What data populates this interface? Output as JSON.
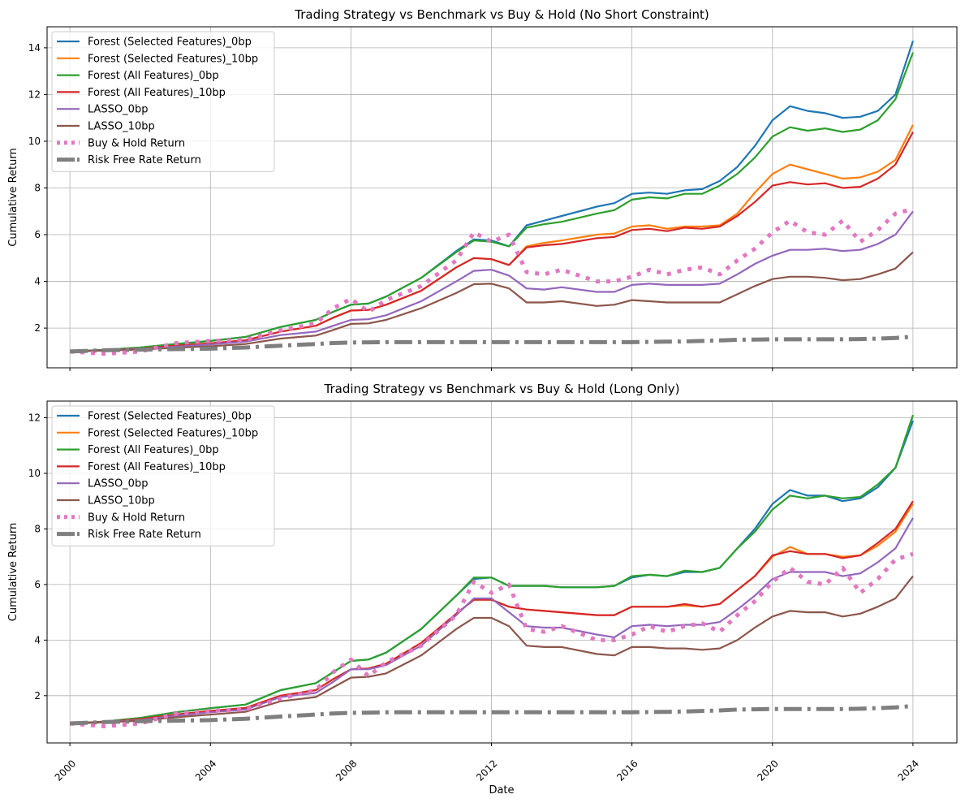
{
  "figure": {
    "xlabel": "Date"
  },
  "colors": {
    "forest_sel_0bp": "#1f77b4",
    "forest_sel_10bp": "#ff7f0e",
    "forest_all_0bp": "#2ca02c",
    "forest_all_10bp": "#d62728",
    "lasso_0bp": "#9467bd",
    "lasso_10bp": "#8c564b",
    "buy_hold": "#e377c2",
    "risk_free": "#7f7f7f"
  },
  "chart_data": [
    {
      "type": "line",
      "title": "Trading Strategy vs Benchmark vs Buy & Hold (No Short Constraint)",
      "xlabel": "",
      "ylabel": "Cumulative Return",
      "xlim": [
        2000,
        2024
      ],
      "ylim": [
        0.3,
        14.9
      ],
      "x_ticks": [
        "2000",
        "2004",
        "2008",
        "2012",
        "2016",
        "2020",
        "2024"
      ],
      "x_tick_values": [
        2000,
        2004,
        2008,
        2012,
        2016,
        2020,
        2024
      ],
      "y_ticks": [
        2,
        4,
        6,
        8,
        10,
        12,
        14
      ],
      "grid": true,
      "legend_position": "upper-left",
      "x": [
        2000.0,
        2001.0,
        2002.0,
        2003.0,
        2004.0,
        2005.0,
        2006.0,
        2007.0,
        2007.5,
        2008.0,
        2008.5,
        2009.0,
        2010.0,
        2011.0,
        2011.5,
        2012.0,
        2012.5,
        2013.0,
        2013.5,
        2014.0,
        2015.0,
        2015.5,
        2016.0,
        2016.5,
        2017.0,
        2017.5,
        2018.0,
        2018.5,
        2019.0,
        2019.5,
        2020.0,
        2020.5,
        2021.0,
        2021.5,
        2022.0,
        2022.5,
        2023.0,
        2023.5,
        2024.0
      ],
      "series": [
        {
          "name": "Forest (Selected Features)_0bp",
          "color_key": "forest_sel_0bp",
          "style": "solid",
          "width": 2.2,
          "values": [
            1.0,
            1.07,
            1.17,
            1.32,
            1.45,
            1.62,
            2.05,
            2.35,
            2.7,
            3.0,
            3.05,
            3.35,
            4.15,
            5.3,
            5.8,
            5.75,
            5.5,
            6.4,
            6.6,
            6.8,
            7.2,
            7.35,
            7.75,
            7.8,
            7.75,
            7.9,
            7.95,
            8.3,
            8.9,
            9.8,
            10.9,
            11.5,
            11.3,
            11.2,
            11.0,
            11.05,
            11.3,
            12.0,
            14.3
          ]
        },
        {
          "name": "Forest (Selected Features)_10bp",
          "color_key": "forest_sel_10bp",
          "style": "solid",
          "width": 2.2,
          "values": [
            1.0,
            1.05,
            1.12,
            1.25,
            1.35,
            1.48,
            1.85,
            2.1,
            2.45,
            2.75,
            2.78,
            3.0,
            3.6,
            4.6,
            5.0,
            4.95,
            4.7,
            5.5,
            5.65,
            5.75,
            6.0,
            6.05,
            6.35,
            6.4,
            6.25,
            6.35,
            6.35,
            6.4,
            6.9,
            7.8,
            8.6,
            9.0,
            8.8,
            8.6,
            8.4,
            8.45,
            8.7,
            9.2,
            10.7
          ]
        },
        {
          "name": "Forest (All Features)_0bp",
          "color_key": "forest_all_0bp",
          "style": "solid",
          "width": 2.2,
          "values": [
            1.0,
            1.07,
            1.17,
            1.32,
            1.45,
            1.62,
            2.05,
            2.35,
            2.7,
            3.0,
            3.05,
            3.35,
            4.15,
            5.25,
            5.75,
            5.7,
            5.5,
            6.3,
            6.45,
            6.55,
            6.9,
            7.05,
            7.5,
            7.6,
            7.55,
            7.75,
            7.75,
            8.1,
            8.6,
            9.3,
            10.2,
            10.6,
            10.45,
            10.55,
            10.4,
            10.5,
            10.9,
            11.8,
            13.8
          ]
        },
        {
          "name": "Forest (All Features)_10bp",
          "color_key": "forest_all_10bp",
          "style": "solid",
          "width": 2.2,
          "values": [
            1.0,
            1.05,
            1.12,
            1.25,
            1.35,
            1.48,
            1.85,
            2.1,
            2.45,
            2.75,
            2.78,
            3.0,
            3.6,
            4.6,
            5.0,
            4.95,
            4.7,
            5.45,
            5.55,
            5.6,
            5.85,
            5.9,
            6.2,
            6.25,
            6.15,
            6.3,
            6.25,
            6.35,
            6.8,
            7.4,
            8.1,
            8.25,
            8.15,
            8.2,
            8.0,
            8.05,
            8.4,
            9.0,
            10.4
          ]
        },
        {
          "name": "LASSO_0bp",
          "color_key": "lasso_0bp",
          "style": "solid",
          "width": 2.2,
          "values": [
            1.0,
            1.05,
            1.1,
            1.2,
            1.3,
            1.42,
            1.7,
            1.85,
            2.1,
            2.35,
            2.38,
            2.55,
            3.15,
            4.0,
            4.45,
            4.5,
            4.25,
            3.7,
            3.65,
            3.75,
            3.55,
            3.55,
            3.85,
            3.9,
            3.85,
            3.85,
            3.85,
            3.9,
            4.3,
            4.75,
            5.1,
            5.35,
            5.35,
            5.4,
            5.3,
            5.35,
            5.6,
            6.0,
            7.0
          ]
        },
        {
          "name": "LASSO_10bp",
          "color_key": "lasso_10bp",
          "style": "solid",
          "width": 2.2,
          "values": [
            1.0,
            1.04,
            1.08,
            1.16,
            1.22,
            1.32,
            1.55,
            1.68,
            1.92,
            2.18,
            2.2,
            2.35,
            2.85,
            3.5,
            3.88,
            3.9,
            3.7,
            3.1,
            3.1,
            3.15,
            2.95,
            3.0,
            3.2,
            3.15,
            3.1,
            3.1,
            3.1,
            3.1,
            3.45,
            3.8,
            4.1,
            4.2,
            4.2,
            4.15,
            4.05,
            4.1,
            4.3,
            4.55,
            5.25
          ]
        },
        {
          "name": "Buy & Hold Return",
          "color_key": "buy_hold",
          "style": "dotted",
          "width": 5,
          "values": [
            1.0,
            0.9,
            1.0,
            1.35,
            1.45,
            1.5,
            1.9,
            2.2,
            2.85,
            3.25,
            2.7,
            3.2,
            3.8,
            4.9,
            6.1,
            5.7,
            6.0,
            4.4,
            4.3,
            4.5,
            4.0,
            4.0,
            4.2,
            4.5,
            4.3,
            4.5,
            4.6,
            4.3,
            4.9,
            5.4,
            6.1,
            6.6,
            6.1,
            6.0,
            6.6,
            5.7,
            6.2,
            6.9,
            7.1
          ]
        },
        {
          "name": "Risk Free Rate Return",
          "color_key": "risk_free",
          "style": "dashdot",
          "width": 5,
          "values": [
            1.0,
            1.05,
            1.08,
            1.1,
            1.12,
            1.17,
            1.25,
            1.32,
            1.36,
            1.38,
            1.39,
            1.4,
            1.4,
            1.4,
            1.4,
            1.4,
            1.4,
            1.4,
            1.4,
            1.4,
            1.4,
            1.4,
            1.4,
            1.41,
            1.42,
            1.43,
            1.45,
            1.47,
            1.5,
            1.51,
            1.52,
            1.52,
            1.52,
            1.52,
            1.52,
            1.53,
            1.55,
            1.58,
            1.63
          ]
        }
      ]
    },
    {
      "type": "line",
      "title": "Trading Strategy vs Benchmark vs Buy & Hold (Long Only)",
      "xlabel": "Date",
      "ylabel": "Cumulative Return",
      "xlim": [
        2000,
        2024
      ],
      "ylim": [
        0.3,
        12.6
      ],
      "x_ticks": [
        "2000",
        "2004",
        "2008",
        "2012",
        "2016",
        "2020",
        "2024"
      ],
      "x_tick_values": [
        2000,
        2004,
        2008,
        2012,
        2016,
        2020,
        2024
      ],
      "y_ticks": [
        2,
        4,
        6,
        8,
        10,
        12
      ],
      "grid": true,
      "legend_position": "upper-left",
      "x": [
        2000.0,
        2001.0,
        2002.0,
        2003.0,
        2004.0,
        2005.0,
        2006.0,
        2007.0,
        2007.5,
        2008.0,
        2008.5,
        2009.0,
        2010.0,
        2011.0,
        2011.5,
        2012.0,
        2012.5,
        2013.0,
        2013.5,
        2014.0,
        2015.0,
        2015.5,
        2016.0,
        2016.5,
        2017.0,
        2017.5,
        2018.0,
        2018.5,
        2019.0,
        2019.5,
        2020.0,
        2020.5,
        2021.0,
        2021.5,
        2022.0,
        2022.5,
        2023.0,
        2023.5,
        2024.0
      ],
      "series": [
        {
          "name": "Forest (Selected Features)_0bp",
          "color_key": "forest_sel_0bp",
          "style": "solid",
          "width": 2.2,
          "values": [
            1.0,
            1.07,
            1.2,
            1.4,
            1.55,
            1.68,
            2.2,
            2.45,
            2.85,
            3.25,
            3.3,
            3.55,
            4.4,
            5.6,
            6.2,
            6.25,
            5.95,
            5.95,
            5.95,
            5.9,
            5.9,
            5.95,
            6.25,
            6.35,
            6.3,
            6.45,
            6.45,
            6.6,
            7.3,
            8.0,
            8.9,
            9.4,
            9.2,
            9.2,
            9.0,
            9.1,
            9.5,
            10.2,
            11.9
          ]
        },
        {
          "name": "Forest (Selected Features)_10bp",
          "color_key": "forest_sel_10bp",
          "style": "solid",
          "width": 2.2,
          "values": [
            1.0,
            1.06,
            1.16,
            1.32,
            1.45,
            1.56,
            2.0,
            2.2,
            2.6,
            2.95,
            2.98,
            3.15,
            3.9,
            4.95,
            5.45,
            5.45,
            5.2,
            5.1,
            5.05,
            5.0,
            4.9,
            4.9,
            5.2,
            5.2,
            5.2,
            5.25,
            5.2,
            5.3,
            5.8,
            6.3,
            7.0,
            7.35,
            7.1,
            7.1,
            7.0,
            7.05,
            7.4,
            7.9,
            8.9
          ]
        },
        {
          "name": "Forest (All Features)_0bp",
          "color_key": "forest_all_0bp",
          "style": "solid",
          "width": 2.2,
          "values": [
            1.0,
            1.07,
            1.2,
            1.4,
            1.55,
            1.68,
            2.2,
            2.45,
            2.85,
            3.25,
            3.3,
            3.55,
            4.4,
            5.6,
            6.25,
            6.25,
            5.95,
            5.95,
            5.95,
            5.9,
            5.9,
            5.95,
            6.3,
            6.35,
            6.3,
            6.5,
            6.45,
            6.6,
            7.3,
            7.9,
            8.7,
            9.2,
            9.1,
            9.2,
            9.1,
            9.15,
            9.6,
            10.2,
            12.1
          ]
        },
        {
          "name": "Forest (All Features)_10bp",
          "color_key": "forest_all_10bp",
          "style": "solid",
          "width": 2.2,
          "values": [
            1.0,
            1.06,
            1.16,
            1.32,
            1.45,
            1.56,
            2.0,
            2.2,
            2.6,
            2.95,
            2.98,
            3.15,
            3.9,
            4.95,
            5.45,
            5.45,
            5.2,
            5.1,
            5.05,
            5.0,
            4.9,
            4.9,
            5.2,
            5.2,
            5.2,
            5.3,
            5.2,
            5.3,
            5.8,
            6.3,
            7.05,
            7.2,
            7.1,
            7.1,
            6.95,
            7.05,
            7.5,
            8.0,
            9.0
          ]
        },
        {
          "name": "LASSO_0bp",
          "color_key": "lasso_0bp",
          "style": "solid",
          "width": 2.2,
          "values": [
            1.0,
            1.05,
            1.12,
            1.28,
            1.4,
            1.5,
            1.95,
            2.1,
            2.5,
            2.95,
            2.95,
            3.1,
            3.8,
            4.9,
            5.5,
            5.5,
            5.0,
            4.5,
            4.45,
            4.45,
            4.2,
            4.1,
            4.5,
            4.55,
            4.5,
            4.55,
            4.55,
            4.65,
            5.1,
            5.6,
            6.2,
            6.45,
            6.45,
            6.45,
            6.3,
            6.4,
            6.8,
            7.3,
            8.4
          ]
        },
        {
          "name": "LASSO_10bp",
          "color_key": "lasso_10bp",
          "style": "solid",
          "width": 2.2,
          "values": [
            1.0,
            1.04,
            1.1,
            1.22,
            1.32,
            1.42,
            1.8,
            1.95,
            2.3,
            2.65,
            2.68,
            2.8,
            3.45,
            4.4,
            4.8,
            4.8,
            4.5,
            3.8,
            3.75,
            3.75,
            3.5,
            3.45,
            3.75,
            3.75,
            3.7,
            3.7,
            3.65,
            3.7,
            4.0,
            4.45,
            4.85,
            5.05,
            5.0,
            5.0,
            4.85,
            4.95,
            5.2,
            5.5,
            6.3
          ]
        },
        {
          "name": "Buy & Hold Return",
          "color_key": "buy_hold",
          "style": "dotted",
          "width": 5,
          "values": [
            1.0,
            0.9,
            1.0,
            1.35,
            1.45,
            1.5,
            1.9,
            2.2,
            2.85,
            3.3,
            2.7,
            3.2,
            3.8,
            4.9,
            6.1,
            5.7,
            6.0,
            4.4,
            4.3,
            4.5,
            4.0,
            4.0,
            4.2,
            4.5,
            4.3,
            4.5,
            4.6,
            4.3,
            4.9,
            5.4,
            6.1,
            6.6,
            6.1,
            6.0,
            6.6,
            5.7,
            6.2,
            6.9,
            7.1
          ]
        },
        {
          "name": "Risk Free Rate Return",
          "color_key": "risk_free",
          "style": "dashdot",
          "width": 5,
          "values": [
            1.0,
            1.05,
            1.08,
            1.1,
            1.12,
            1.17,
            1.25,
            1.32,
            1.36,
            1.38,
            1.39,
            1.4,
            1.4,
            1.4,
            1.4,
            1.4,
            1.4,
            1.4,
            1.4,
            1.4,
            1.4,
            1.4,
            1.4,
            1.41,
            1.42,
            1.43,
            1.45,
            1.47,
            1.5,
            1.51,
            1.52,
            1.52,
            1.52,
            1.52,
            1.52,
            1.53,
            1.55,
            1.58,
            1.63
          ]
        }
      ]
    }
  ]
}
